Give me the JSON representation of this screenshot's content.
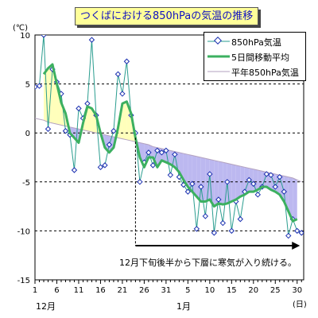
{
  "title": "つくばにおける850hPaの気温の推移",
  "chart_data": {
    "type": "line",
    "title": "つくばにおける850hPaの気温の推移",
    "ylabel_unit": "(℃)",
    "xlabel_unit": "(日)",
    "ylim": [
      -15,
      10
    ],
    "yticks": [
      10,
      5,
      0,
      -5,
      -10,
      -15
    ],
    "x_tick_labels": [
      "1",
      "6",
      "11",
      "16",
      "21",
      "26",
      "31",
      "5",
      "10",
      "15",
      "20",
      "25",
      "30"
    ],
    "x_tick_days": [
      1,
      6,
      11,
      16,
      21,
      26,
      31,
      36,
      41,
      46,
      51,
      56,
      61
    ],
    "month_labels": [
      "12月",
      "1月"
    ],
    "grid": "dashed horizontal",
    "legend_position": "top-right",
    "x_days": [
      1,
      2,
      3,
      4,
      5,
      6,
      7,
      8,
      9,
      10,
      11,
      12,
      13,
      14,
      15,
      16,
      17,
      18,
      19,
      20,
      21,
      22,
      23,
      24,
      25,
      26,
      27,
      28,
      29,
      30,
      31,
      32,
      33,
      34,
      35,
      36,
      37,
      38,
      39,
      40,
      41,
      42,
      43,
      44,
      45,
      46,
      47,
      48,
      49,
      50,
      51,
      52,
      53,
      54,
      55,
      56,
      57,
      58,
      59,
      60,
      61,
      62
    ],
    "series": [
      {
        "name": "850hPa気温",
        "color": "#2a9d8f",
        "values": [
          4.7,
          4.8,
          10.0,
          0.4,
          6.5,
          5.2,
          4.0,
          0.2,
          -0.2,
          -3.8,
          2.5,
          1.5,
          3.0,
          9.5,
          1.8,
          -3.5,
          -3.3,
          -1.2,
          0.2,
          6.0,
          4.0,
          7.3,
          1.8,
          0.0,
          -5.0,
          -3.0,
          -2.0,
          -3.3,
          -1.8,
          -2.0,
          -1.8,
          -4.3,
          -2.2,
          -4.5,
          -5.3,
          -6.0,
          -5.2,
          -9.8,
          -5.5,
          -8.5,
          -4.2,
          -10.2,
          -6.8,
          -9.2,
          -5.0,
          -10.0,
          -7.0,
          -8.8,
          -6.0,
          -4.8,
          -5.2,
          -6.3,
          -5.5,
          -4.2,
          -4.3,
          -5.5,
          -4.5,
          -6.0,
          -10.5,
          -8.8,
          -10.0,
          -10.2
        ]
      },
      {
        "name": "5日間移動平均",
        "color": "#3cb060",
        "values": [
          null,
          null,
          6.0,
          6.6,
          7.0,
          5.0,
          3.1,
          2.0,
          0.0,
          -0.5,
          -1.0,
          1.0,
          2.7,
          2.5,
          1.8,
          0.0,
          -1.5,
          -2.0,
          -1.5,
          0.5,
          3.0,
          3.2,
          2.0,
          -0.5,
          -2.5,
          -3.5,
          -2.5,
          -2.5,
          -3.5,
          -2.8,
          -3.0,
          -3.2,
          -3.5,
          -4.0,
          -4.8,
          -5.5,
          -6.0,
          -6.5,
          -7.0,
          -7.0,
          -6.8,
          -7.5,
          -7.2,
          -7.3,
          -7.2,
          -7.0,
          -6.8,
          -6.5,
          -6.3,
          -6.0,
          -6.0,
          -5.8,
          -5.5,
          -5.5,
          -5.8,
          -6.0,
          -6.3,
          -7.0,
          -8.0,
          -9.0,
          -8.8,
          null
        ]
      },
      {
        "name": "平年850hPa気温",
        "color": "#b3a2bf",
        "values": [
          1.5,
          1.4,
          1.3,
          1.1,
          1.0,
          0.9,
          0.8,
          0.7,
          0.6,
          0.5,
          0.4,
          0.3,
          0.2,
          0.1,
          0.0,
          -0.1,
          -0.2,
          -0.3,
          -0.4,
          -0.5,
          -0.6,
          -0.7,
          -0.8,
          -0.9,
          -1.0,
          -1.1,
          -1.2,
          -1.4,
          -1.5,
          -1.6,
          -1.7,
          -1.8,
          -1.9,
          -2.0,
          -2.1,
          -2.2,
          -2.3,
          -2.4,
          -2.5,
          -2.6,
          -2.7,
          -2.8,
          -2.9,
          -3.0,
          -3.1,
          -3.2,
          -3.3,
          -3.4,
          -3.5,
          -3.6,
          -3.7,
          -3.8,
          -3.9,
          -4.0,
          -4.1,
          -4.2,
          -4.3,
          -4.4,
          -4.5,
          -4.6,
          -4.8,
          -5.0
        ]
      }
    ],
    "annotation": {
      "text": "12月下旬後半から下層に寒気が入り続ける。",
      "from_day": 24,
      "to_day": 62
    },
    "fill_colors": {
      "warm": "#ffffbb",
      "cold": "#bcb8f0"
    }
  }
}
